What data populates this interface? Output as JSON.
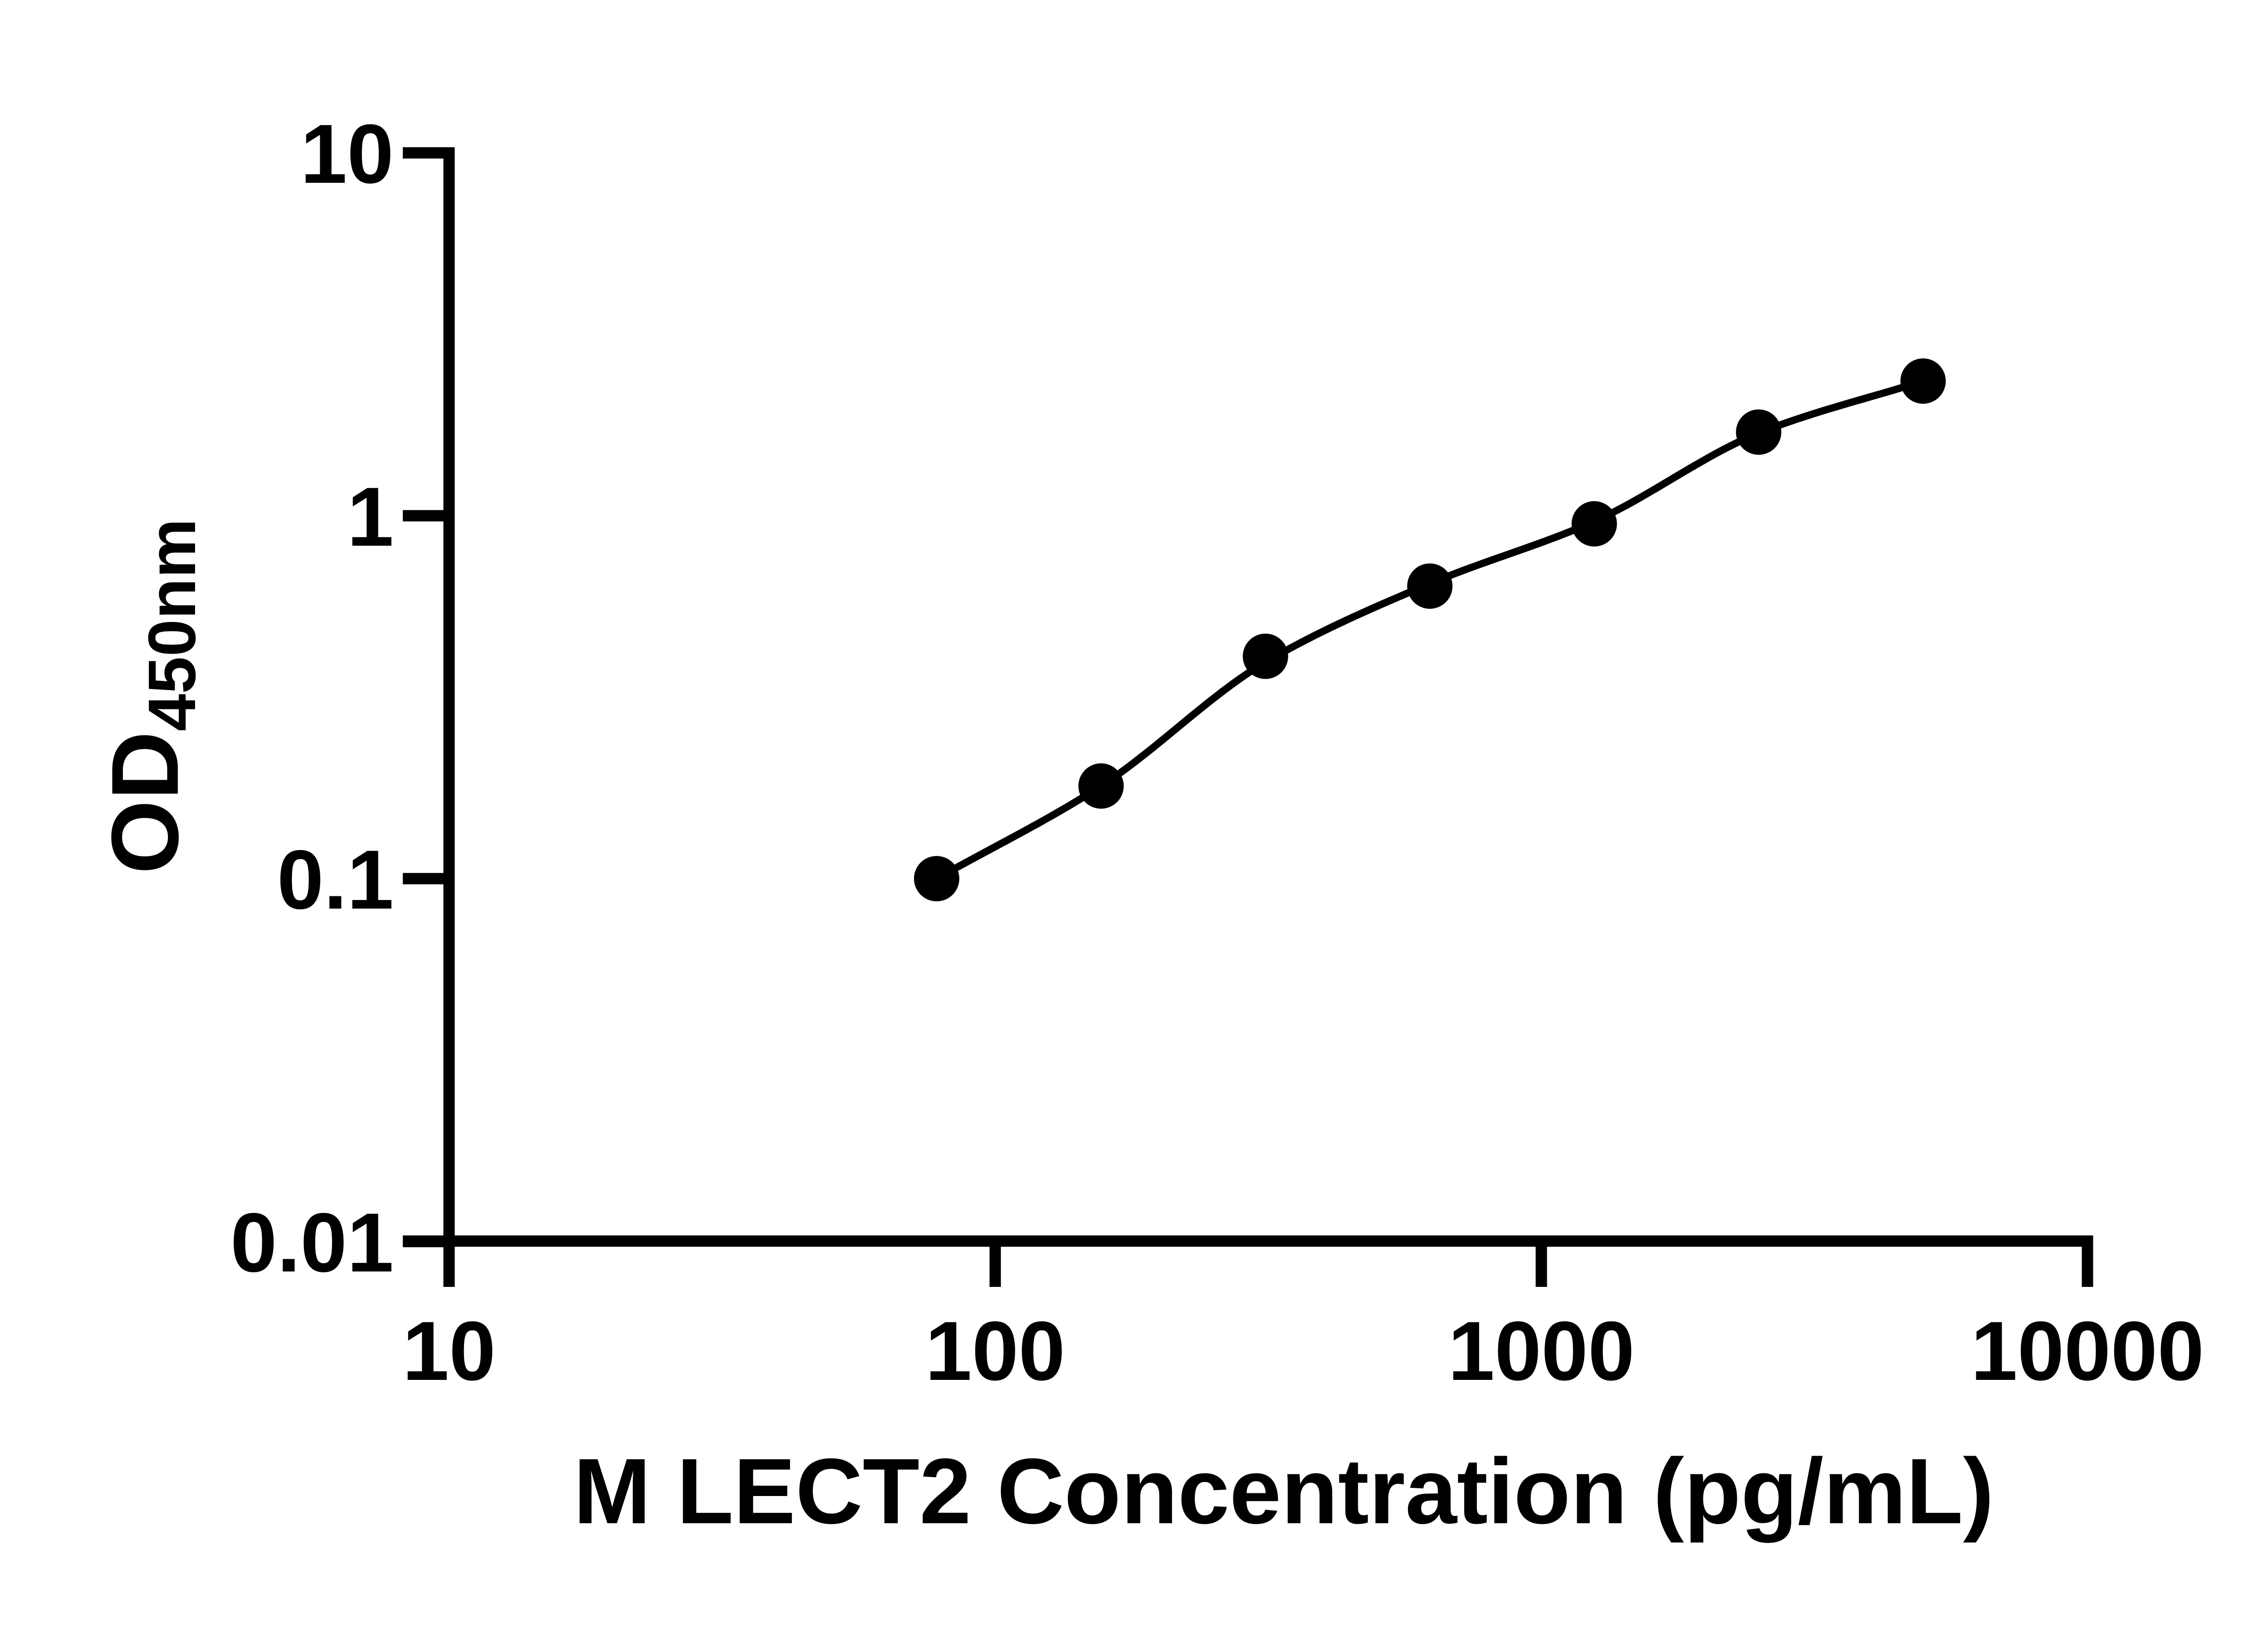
{
  "chart_data": {
    "type": "scatter",
    "title": "",
    "xlabel": "M LECT2 Concentration (pg/mL)",
    "ylabel_main": "OD",
    "ylabel_sub": "450nm",
    "xscale": "log",
    "yscale": "log",
    "xlim": [
      10,
      10000
    ],
    "ylim": [
      0.01,
      10
    ],
    "grid": false,
    "legend": "none",
    "series": [
      {
        "name": "M LECT2 standard curve points",
        "x": [
          78.125,
          156.25,
          312.5,
          625,
          1250,
          2500,
          5000
        ],
        "y": [
          0.1,
          0.18,
          0.41,
          0.64,
          0.95,
          1.7,
          2.35
        ]
      }
    ],
    "fit_line": {
      "name": "fitted standard curve",
      "x": [
        78.125,
        156.25,
        312.5,
        625,
        1250,
        2500,
        5000
      ],
      "y": [
        0.1,
        0.18,
        0.395,
        0.65,
        0.965,
        1.69,
        2.35
      ]
    },
    "x_axis": {
      "title": "M LECT2 Concentration (pg/mL)",
      "ticks": [
        {
          "value": 10,
          "label": "10"
        },
        {
          "value": 100,
          "label": "100"
        },
        {
          "value": 1000,
          "label": "1000"
        },
        {
          "value": 10000,
          "label": "10000"
        }
      ]
    },
    "y_axis": {
      "title_main": "OD",
      "title_sub": "450nm",
      "ticks": [
        {
          "value": 10,
          "label": "10"
        },
        {
          "value": 1,
          "label": "1"
        },
        {
          "value": 0.1,
          "label": "0.1"
        },
        {
          "value": 0.01,
          "label": "0.01"
        }
      ]
    },
    "colors": {
      "axis": "#000000",
      "marker": "#000000",
      "line": "#000000",
      "text": "#000000",
      "background": "#ffffff"
    }
  }
}
